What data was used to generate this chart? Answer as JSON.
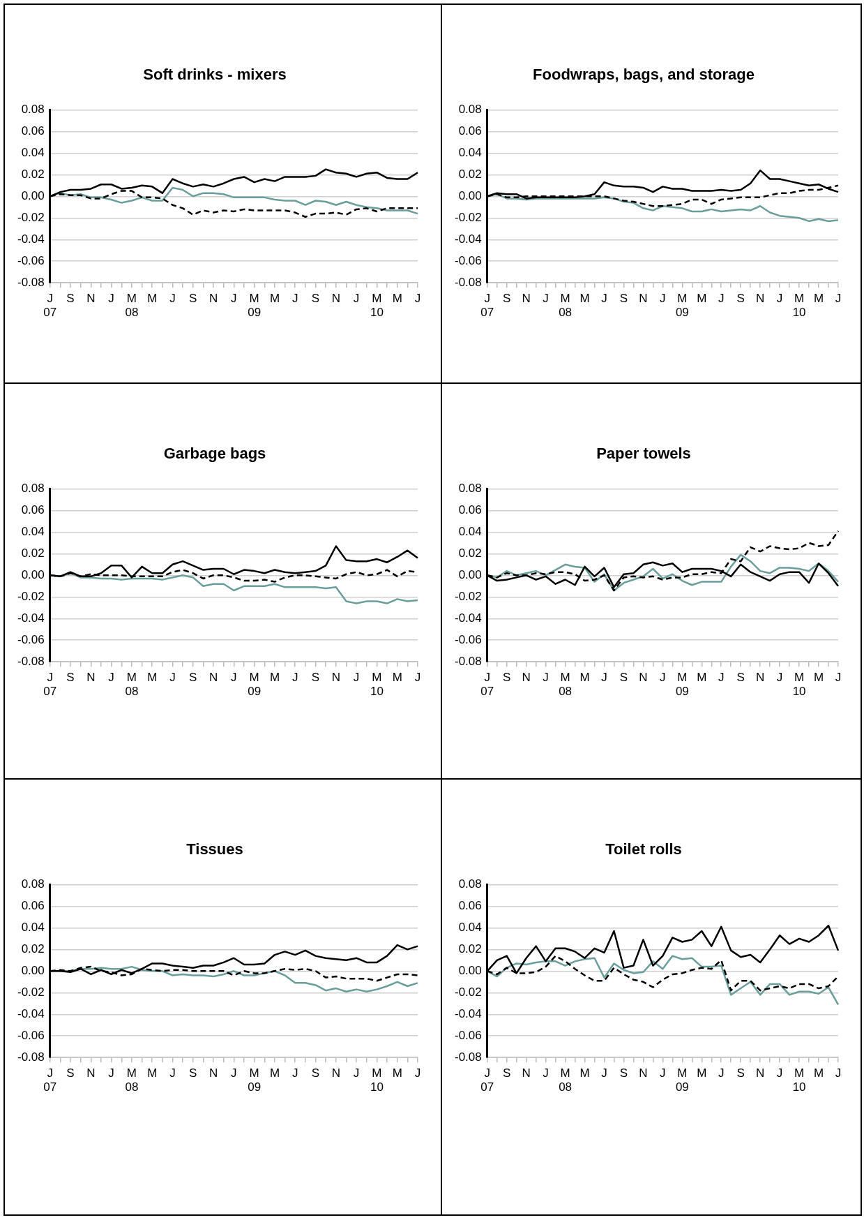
{
  "chart_data": [
    {
      "type": "line",
      "title": "Soft drinks - mixers",
      "categories": [
        "J\n07",
        null,
        "S",
        null,
        "N",
        null,
        "J",
        null,
        "M\n08",
        null,
        "M",
        null,
        "J",
        null,
        "S",
        null,
        "N",
        null,
        "J",
        null,
        "M\n09",
        null,
        "M",
        null,
        "J",
        null,
        "S",
        null,
        "N",
        null,
        "J",
        null,
        "M\n10",
        null,
        "M",
        null,
        "J"
      ],
      "ylim": [
        -0.08,
        0.08
      ],
      "yticks": [
        {
          "value": 0.08,
          "label": "0.08"
        },
        {
          "value": 0.06,
          "label": "0.06"
        },
        {
          "value": 0.04,
          "label": "0.04"
        },
        {
          "value": 0.02,
          "label": "0.02"
        },
        {
          "value": 0,
          "label": "0.00"
        },
        {
          "value": -0.02,
          "label": "-0.02"
        },
        {
          "value": -0.04,
          "label": "-0.04"
        },
        {
          "value": -0.06,
          "label": "-0.06"
        },
        {
          "value": -0.08,
          "label": "-0.08"
        }
      ],
      "grid": "y",
      "marker": "none",
      "series": [
        {
          "color": "#000000",
          "line_style": "solid",
          "values": [
            0,
            0.004,
            0.006,
            0.006,
            0.007,
            0.011,
            0.011,
            0.007,
            0.008,
            0.01,
            0.009,
            0.003,
            0.016,
            0.012,
            0.009,
            0.011,
            0.009,
            0.012,
            0.016,
            0.018,
            0.013,
            0.016,
            0.014,
            0.018,
            0.018,
            0.018,
            0.019,
            0.025,
            0.022,
            0.021,
            0.018,
            0.021,
            0.022,
            0.017,
            0.016,
            0.016,
            0.022
          ]
        },
        {
          "color": "#000000",
          "line_style": "dashed",
          "values": [
            0,
            0.002,
            0.001,
            0.001,
            -0.002,
            -0.002,
            0.002,
            0.005,
            0.005,
            -0.001,
            -0.001,
            -0.002,
            -0.008,
            -0.011,
            -0.017,
            -0.013,
            -0.015,
            -0.013,
            -0.014,
            -0.012,
            -0.013,
            -0.013,
            -0.013,
            -0.013,
            -0.015,
            -0.019,
            -0.016,
            -0.016,
            -0.015,
            -0.017,
            -0.012,
            -0.011,
            -0.014,
            -0.011,
            -0.011,
            -0.011,
            -0.011
          ]
        },
        {
          "color": "#6a9e9c",
          "line_style": "solid",
          "values": [
            0,
            0.003,
            0.001,
            0.002,
            -0.001,
            -0.001,
            -0.003,
            -0.006,
            -0.004,
            -0.001,
            -0.004,
            -0.004,
            0.008,
            0.006,
            0,
            0.003,
            0.003,
            0.002,
            -0.001,
            -0.001,
            -0.001,
            -0.001,
            -0.003,
            -0.004,
            -0.004,
            -0.008,
            -0.004,
            -0.005,
            -0.008,
            -0.005,
            -0.008,
            -0.01,
            -0.011,
            -0.013,
            -0.013,
            -0.013,
            -0.016
          ]
        }
      ]
    },
    {
      "type": "line",
      "title": "Foodwraps, bags, and storage",
      "categories": [
        "J\n07",
        null,
        "S",
        null,
        "N",
        null,
        "J",
        null,
        "M\n08",
        null,
        "M",
        null,
        "J",
        null,
        "S",
        null,
        "N",
        null,
        "J",
        null,
        "M\n09",
        null,
        "M",
        null,
        "J",
        null,
        "S",
        null,
        "N",
        null,
        "J",
        null,
        "M\n10",
        null,
        "M",
        null,
        "J"
      ],
      "ylim": [
        -0.08,
        0.08
      ],
      "yticks": [
        {
          "value": 0.08,
          "label": "0.08"
        },
        {
          "value": 0.06,
          "label": "0.06"
        },
        {
          "value": 0.04,
          "label": "0.04"
        },
        {
          "value": 0.02,
          "label": "0.02"
        },
        {
          "value": 0,
          "label": "0.00"
        },
        {
          "value": -0.02,
          "label": "-0.02"
        },
        {
          "value": -0.04,
          "label": "-0.04"
        },
        {
          "value": -0.06,
          "label": "-0.06"
        },
        {
          "value": -0.08,
          "label": "-0.08"
        }
      ],
      "grid": "y",
      "marker": "none",
      "series": [
        {
          "color": "#000000",
          "line_style": "solid",
          "values": [
            0,
            0.003,
            0.002,
            0.002,
            -0.002,
            -0.001,
            -0.001,
            -0.001,
            -0.001,
            -0.001,
            0,
            0.002,
            0.013,
            0.01,
            0.009,
            0.009,
            0.008,
            0.004,
            0.009,
            0.007,
            0.007,
            0.005,
            0.005,
            0.005,
            0.006,
            0.005,
            0.006,
            0.012,
            0.024,
            0.016,
            0.016,
            0.014,
            0.012,
            0.01,
            0.011,
            0.007,
            0.004
          ]
        },
        {
          "color": "#000000",
          "line_style": "dashed",
          "values": [
            0,
            0.002,
            -0.001,
            -0.001,
            0,
            0,
            0,
            0,
            0,
            0,
            0,
            0,
            0,
            -0.002,
            -0.004,
            -0.005,
            -0.007,
            -0.009,
            -0.009,
            -0.008,
            -0.007,
            -0.003,
            -0.003,
            -0.007,
            -0.003,
            -0.002,
            -0.001,
            -0.001,
            -0.001,
            0.001,
            0.003,
            0.003,
            0.005,
            0.006,
            0.006,
            0.008,
            0.01
          ]
        },
        {
          "color": "#6a9e9c",
          "line_style": "solid",
          "values": [
            0,
            0.002,
            -0.002,
            -0.002,
            -0.003,
            -0.002,
            -0.002,
            -0.002,
            -0.002,
            -0.002,
            -0.002,
            -0.002,
            -0.001,
            -0.002,
            -0.005,
            -0.006,
            -0.011,
            -0.013,
            -0.009,
            -0.01,
            -0.011,
            -0.014,
            -0.014,
            -0.012,
            -0.014,
            -0.013,
            -0.012,
            -0.013,
            -0.009,
            -0.015,
            -0.018,
            -0.019,
            -0.02,
            -0.023,
            -0.021,
            -0.023,
            -0.022
          ]
        }
      ]
    },
    {
      "type": "line",
      "title": "Garbage bags",
      "categories": [
        "J\n07",
        null,
        "S",
        null,
        "N",
        null,
        "J",
        null,
        "M\n08",
        null,
        "M",
        null,
        "J",
        null,
        "S",
        null,
        "N",
        null,
        "J",
        null,
        "M\n09",
        null,
        "M",
        null,
        "J",
        null,
        "S",
        null,
        "N",
        null,
        "J",
        null,
        "M\n10",
        null,
        "M",
        null,
        "J"
      ],
      "ylim": [
        -0.08,
        0.08
      ],
      "yticks": [
        {
          "value": 0.08,
          "label": "0.08"
        },
        {
          "value": 0.06,
          "label": "0.06"
        },
        {
          "value": 0.04,
          "label": "0.04"
        },
        {
          "value": 0.02,
          "label": "0.02"
        },
        {
          "value": 0,
          "label": "0.00"
        },
        {
          "value": -0.02,
          "label": "-0.02"
        },
        {
          "value": -0.04,
          "label": "-0.04"
        },
        {
          "value": -0.06,
          "label": "-0.06"
        },
        {
          "value": -0.08,
          "label": "-0.08"
        }
      ],
      "grid": "y",
      "marker": "none",
      "series": [
        {
          "color": "#000000",
          "line_style": "solid",
          "values": [
            0,
            -0.001,
            0.003,
            -0.001,
            -0.001,
            0.002,
            0.009,
            0.009,
            -0.002,
            0.008,
            0.002,
            0.002,
            0.01,
            0.013,
            0.009,
            0.005,
            0.006,
            0.006,
            0.001,
            0.005,
            0.004,
            0.002,
            0.005,
            0.003,
            0.002,
            0.003,
            0.004,
            0.009,
            0.027,
            0.014,
            0.013,
            0.013,
            0.015,
            0.012,
            0.017,
            0.023,
            0.016
          ]
        },
        {
          "color": "#000000",
          "line_style": "dashed",
          "values": [
            0,
            -0.001,
            0.002,
            -0.001,
            0.001,
            0,
            0,
            0,
            -0.001,
            -0.001,
            -0.001,
            -0.001,
            0.003,
            0.005,
            0.002,
            -0.003,
            0,
            0,
            -0.002,
            -0.005,
            -0.005,
            -0.004,
            -0.006,
            -0.002,
            0,
            0,
            -0.001,
            -0.002,
            -0.003,
            0.001,
            0.003,
            0,
            0.001,
            0.005,
            -0.001,
            0.004,
            0.003
          ]
        },
        {
          "color": "#6a9e9c",
          "line_style": "solid",
          "values": [
            0,
            -0.001,
            0.002,
            -0.002,
            -0.002,
            -0.003,
            -0.003,
            -0.004,
            -0.003,
            -0.003,
            -0.003,
            -0.004,
            -0.002,
            0,
            -0.002,
            -0.01,
            -0.008,
            -0.008,
            -0.014,
            -0.01,
            -0.01,
            -0.01,
            -0.008,
            -0.011,
            -0.011,
            -0.011,
            -0.011,
            -0.012,
            -0.011,
            -0.024,
            -0.026,
            -0.024,
            -0.024,
            -0.026,
            -0.022,
            -0.024,
            -0.023
          ]
        }
      ]
    },
    {
      "type": "line",
      "title": "Paper towels",
      "categories": [
        "J\n07",
        null,
        "S",
        null,
        "N",
        null,
        "J",
        null,
        "M\n08",
        null,
        "M",
        null,
        "J",
        null,
        "S",
        null,
        "N",
        null,
        "J",
        null,
        "M\n09",
        null,
        "M",
        null,
        "J",
        null,
        "S",
        null,
        "N",
        null,
        "J",
        null,
        "M\n10",
        null,
        "M",
        null,
        "J"
      ],
      "ylim": [
        -0.08,
        0.08
      ],
      "yticks": [
        {
          "value": 0.08,
          "label": "0.08"
        },
        {
          "value": 0.06,
          "label": "0.06"
        },
        {
          "value": 0.04,
          "label": "0.04"
        },
        {
          "value": 0.02,
          "label": "0.02"
        },
        {
          "value": 0,
          "label": "0.00"
        },
        {
          "value": -0.02,
          "label": "-0.02"
        },
        {
          "value": -0.04,
          "label": "-0.04"
        },
        {
          "value": -0.06,
          "label": "-0.06"
        },
        {
          "value": -0.08,
          "label": "-0.08"
        }
      ],
      "grid": "y",
      "marker": "none",
      "series": [
        {
          "color": "#000000",
          "line_style": "solid",
          "values": [
            0,
            -0.005,
            -0.004,
            -0.002,
            0,
            -0.004,
            -0.001,
            -0.008,
            -0.004,
            -0.009,
            0.008,
            -0.001,
            0.007,
            -0.011,
            0.001,
            0.002,
            0.01,
            0.012,
            0.009,
            0.011,
            0.003,
            0.006,
            0.006,
            0.006,
            0.004,
            -0.001,
            0.01,
            0.003,
            -0.001,
            -0.005,
            0.001,
            0.003,
            0.003,
            -0.007,
            0.011,
            0.002,
            -0.01
          ]
        },
        {
          "color": "#000000",
          "line_style": "dashed",
          "values": [
            0,
            -0.002,
            0.002,
            0,
            0,
            0.002,
            0.001,
            0.003,
            0.003,
            0.001,
            -0.005,
            -0.004,
            0,
            -0.014,
            -0.002,
            -0.001,
            -0.002,
            -0.001,
            -0.004,
            -0.002,
            -0.002,
            0.001,
            0.001,
            0.003,
            0.002,
            0.015,
            0.013,
            0.026,
            0.022,
            0.027,
            0.025,
            0.024,
            0.025,
            0.03,
            0.027,
            0.028,
            0.041
          ]
        },
        {
          "color": "#6a9e9c",
          "line_style": "solid",
          "values": [
            0,
            -0.002,
            0.004,
            0,
            0.002,
            0.004,
            0,
            0.005,
            0.01,
            0.008,
            0.007,
            -0.006,
            0.001,
            -0.014,
            -0.007,
            -0.004,
            -0.001,
            0.006,
            -0.003,
            0.001,
            -0.005,
            -0.009,
            -0.006,
            -0.006,
            -0.006,
            0.008,
            0.019,
            0.013,
            0.004,
            0.002,
            0.007,
            0.007,
            0.006,
            0.004,
            0.011,
            0.004,
            -0.006
          ]
        }
      ]
    },
    {
      "type": "line",
      "title": "Tissues",
      "categories": [
        "J\n07",
        null,
        "S",
        null,
        "N",
        null,
        "J",
        null,
        "M\n08",
        null,
        "M",
        null,
        "J",
        null,
        "S",
        null,
        "N",
        null,
        "J",
        null,
        "M\n09",
        null,
        "M",
        null,
        "J",
        null,
        "S",
        null,
        "N",
        null,
        "J",
        null,
        "M\n10",
        null,
        "M",
        null,
        "J"
      ],
      "ylim": [
        -0.08,
        0.08
      ],
      "yticks": [
        {
          "value": 0.08,
          "label": "0.08"
        },
        {
          "value": 0.06,
          "label": "0.06"
        },
        {
          "value": 0.04,
          "label": "0.04"
        },
        {
          "value": 0.02,
          "label": "0.02"
        },
        {
          "value": 0,
          "label": "0.00"
        },
        {
          "value": -0.02,
          "label": "-0.02"
        },
        {
          "value": -0.04,
          "label": "-0.04"
        },
        {
          "value": -0.06,
          "label": "-0.06"
        },
        {
          "value": -0.08,
          "label": "-0.08"
        }
      ],
      "grid": "y",
      "marker": "none",
      "series": [
        {
          "color": "#000000",
          "line_style": "solid",
          "values": [
            0,
            0,
            -0.001,
            0.002,
            -0.003,
            0.001,
            -0.003,
            0.001,
            -0.002,
            0.002,
            0.007,
            0.007,
            0.005,
            0.004,
            0.003,
            0.005,
            0.005,
            0.008,
            0.012,
            0.006,
            0.006,
            0.007,
            0.015,
            0.018,
            0.015,
            0.019,
            0.014,
            0.012,
            0.011,
            0.01,
            0.012,
            0.008,
            0.008,
            0.014,
            0.024,
            0.02,
            0.023
          ]
        },
        {
          "color": "#000000",
          "line_style": "dashed",
          "values": [
            0,
            0.001,
            0,
            0.003,
            0.004,
            0,
            -0.001,
            -0.004,
            -0.003,
            0.002,
            0.001,
            0,
            0.001,
            0.001,
            0,
            0,
            0,
            0,
            -0.004,
            0,
            -0.002,
            -0.002,
            0,
            0.002,
            0.001,
            0.002,
            0,
            -0.006,
            -0.005,
            -0.007,
            -0.007,
            -0.007,
            -0.009,
            -0.006,
            -0.003,
            -0.003,
            -0.004
          ]
        },
        {
          "color": "#6a9e9c",
          "line_style": "solid",
          "values": [
            0,
            0,
            0,
            0.002,
            0.002,
            0.003,
            0.002,
            0.002,
            0.004,
            0.001,
            0,
            0,
            -0.004,
            -0.003,
            -0.004,
            -0.004,
            -0.005,
            -0.003,
            0,
            -0.004,
            -0.004,
            -0.002,
            0,
            -0.004,
            -0.011,
            -0.011,
            -0.013,
            -0.018,
            -0.016,
            -0.019,
            -0.017,
            -0.019,
            -0.017,
            -0.014,
            -0.01,
            -0.014,
            -0.011
          ]
        }
      ]
    },
    {
      "type": "line",
      "title": "Toilet rolls",
      "categories": [
        "J\n07",
        null,
        "S",
        null,
        "N",
        null,
        "J",
        null,
        "M\n08",
        null,
        "M",
        null,
        "J",
        null,
        "S",
        null,
        "N",
        null,
        "J",
        null,
        "M\n09",
        null,
        "M",
        null,
        "J",
        null,
        "S",
        null,
        "N",
        null,
        "J",
        null,
        "M\n10",
        null,
        "M",
        null,
        "J"
      ],
      "ylim": [
        -0.08,
        0.08
      ],
      "yticks": [
        {
          "value": 0.08,
          "label": "0.08"
        },
        {
          "value": 0.06,
          "label": "0.06"
        },
        {
          "value": 0.04,
          "label": "0.04"
        },
        {
          "value": 0.02,
          "label": "0.02"
        },
        {
          "value": 0,
          "label": "0.00"
        },
        {
          "value": -0.02,
          "label": "-0.02"
        },
        {
          "value": -0.04,
          "label": "-0.04"
        },
        {
          "value": -0.06,
          "label": "-0.06"
        },
        {
          "value": -0.08,
          "label": "-0.08"
        }
      ],
      "grid": "y",
      "marker": "none",
      "series": [
        {
          "color": "#000000",
          "line_style": "solid",
          "values": [
            0,
            0.01,
            0.014,
            -0.002,
            0.012,
            0.023,
            0.009,
            0.021,
            0.021,
            0.018,
            0.012,
            0.021,
            0.017,
            0.037,
            0.003,
            0.005,
            0.029,
            0.005,
            0.014,
            0.031,
            0.027,
            0.029,
            0.037,
            0.023,
            0.041,
            0.019,
            0.013,
            0.015,
            0.008,
            0.02,
            0.033,
            0.025,
            0.03,
            0.027,
            0.033,
            0.042,
            0.019
          ]
        },
        {
          "color": "#000000",
          "line_style": "dashed",
          "values": [
            0,
            -0.003,
            0.003,
            -0.002,
            -0.002,
            -0.001,
            0.004,
            0.014,
            0.009,
            0.002,
            -0.004,
            -0.009,
            -0.009,
            0.003,
            -0.003,
            -0.008,
            -0.01,
            -0.015,
            -0.008,
            -0.003,
            -0.002,
            0.001,
            0.003,
            0.002,
            0.01,
            -0.018,
            -0.009,
            -0.009,
            -0.018,
            -0.016,
            -0.014,
            -0.016,
            -0.012,
            -0.012,
            -0.016,
            -0.014,
            -0.005
          ]
        },
        {
          "color": "#6a9e9c",
          "line_style": "solid",
          "values": [
            0,
            -0.005,
            0.003,
            0.007,
            0.006,
            0.008,
            0.009,
            0.009,
            0.005,
            0.009,
            0.011,
            0.012,
            -0.006,
            0.007,
            0.001,
            -0.002,
            -0.001,
            0.009,
            0.002,
            0.014,
            0.011,
            0.012,
            0.004,
            0.004,
            0.005,
            -0.022,
            -0.016,
            -0.01,
            -0.022,
            -0.012,
            -0.012,
            -0.022,
            -0.019,
            -0.019,
            -0.021,
            -0.015,
            -0.031
          ]
        }
      ]
    }
  ]
}
